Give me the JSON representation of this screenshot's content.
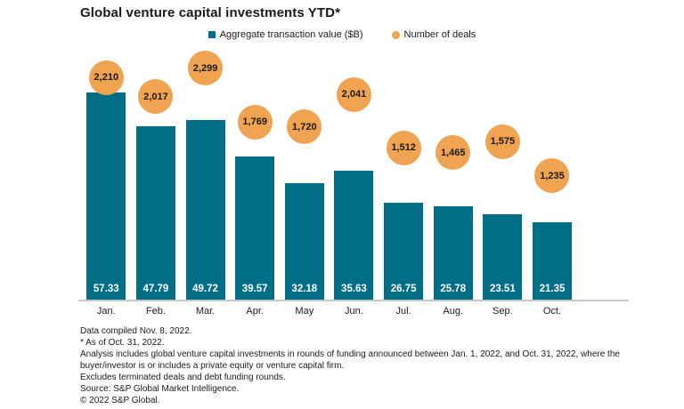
{
  "title": "Global venture capital investments YTD*",
  "legend": [
    {
      "label": "Aggregate transaction value ($B)",
      "swatch": "square",
      "color": "#006e87"
    },
    {
      "label": "Number of deals",
      "swatch": "circle",
      "color": "#f0a350"
    }
  ],
  "colors": {
    "bar": "#006e87",
    "bubble": "#f0a350",
    "bar_value_text": "#ffffff",
    "axis_line": "#c9c9c9",
    "text": "#1a1a1a"
  },
  "chart_data": {
    "type": "bar",
    "title": "Global venture capital investments YTD*",
    "categories": [
      "Jan.",
      "Feb.",
      "Mar.",
      "Apr.",
      "May",
      "Jun.",
      "Jul.",
      "Aug.",
      "Sep.",
      "Oct."
    ],
    "series": [
      {
        "name": "Aggregate transaction value ($B)",
        "type": "bar",
        "values": [
          57.33,
          47.79,
          49.72,
          39.57,
          32.18,
          35.63,
          26.75,
          25.78,
          23.51,
          21.35
        ],
        "labels": [
          "57.33",
          "47.79",
          "49.72",
          "39.57",
          "32.18",
          "35.63",
          "26.75",
          "25.78",
          "23.51",
          "21.35"
        ]
      },
      {
        "name": "Number of deals",
        "type": "bubble",
        "values": [
          2210,
          2017,
          2299,
          1769,
          1720,
          2041,
          1512,
          1465,
          1575,
          1235
        ],
        "labels": [
          "2,210",
          "2,017",
          "2,299",
          "1,769",
          "1,720",
          "2,041",
          "1,512",
          "1,465",
          "1,575",
          "1,235"
        ]
      }
    ],
    "xlabel": "",
    "ylabel": "",
    "ylim": [
      0,
      60
    ],
    "grid": false,
    "legend_position": "top-center",
    "value_labels_position": "inside-bottom",
    "deals_labels_position": "floating-circles-above-bars"
  },
  "footnotes": [
    "Data compiled Nov. 8, 2022.",
    "* As of Oct. 31, 2022.",
    "Analysis includes global venture capital investments in rounds of funding announced between Jan. 1, 2022, and Oct. 31, 2022, where the buyer/investor is or includes a private equity or venture capital firm.",
    "Excludes terminated deals and debt funding rounds.",
    "Source: S&P Global Market Intelligence.",
    "© 2022 S&P Global."
  ]
}
